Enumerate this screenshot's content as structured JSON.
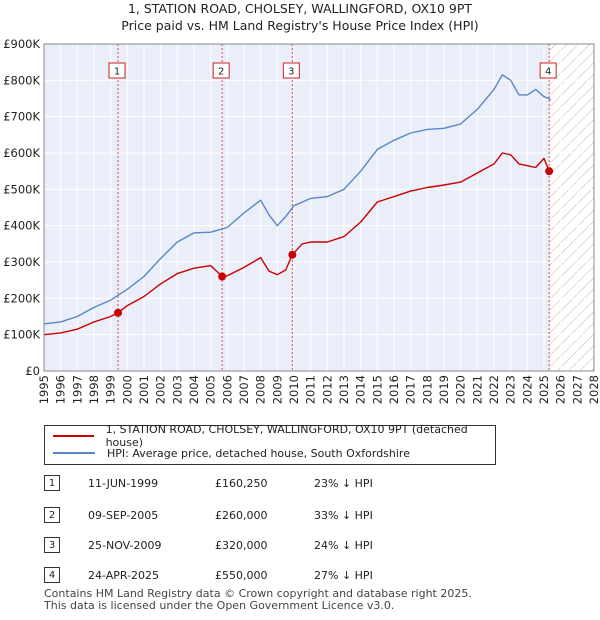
{
  "title": {
    "line1": "1, STATION ROAD, CHOLSEY, WALLINGFORD, OX10 9PT",
    "line2": "Price paid vs. HM Land Registry's House Price Index (HPI)"
  },
  "chart_data": {
    "type": "line",
    "title": "1, STATION ROAD, CHOLSEY, WALLINGFORD, OX10 9PT — Price paid vs. HM Land Registry's House Price Index (HPI)",
    "xlabel": "",
    "ylabel": "",
    "xlim": [
      1995,
      2028
    ],
    "ylim": [
      0,
      900000
    ],
    "x_ticks": [
      "1995",
      "1996",
      "1997",
      "1998",
      "1999",
      "2000",
      "2001",
      "2002",
      "2003",
      "2004",
      "2005",
      "2006",
      "2007",
      "2008",
      "2009",
      "2010",
      "2011",
      "2012",
      "2013",
      "2014",
      "2015",
      "2016",
      "2017",
      "2018",
      "2019",
      "2020",
      "2021",
      "2022",
      "2023",
      "2024",
      "2025",
      "2026",
      "2027",
      "2028"
    ],
    "y_ticks": [
      {
        "value": 0,
        "label": "£0"
      },
      {
        "value": 100000,
        "label": "£100K"
      },
      {
        "value": 200000,
        "label": "£200K"
      },
      {
        "value": 300000,
        "label": "£300K"
      },
      {
        "value": 400000,
        "label": "£400K"
      },
      {
        "value": 500000,
        "label": "£500K"
      },
      {
        "value": 600000,
        "label": "£600K"
      },
      {
        "value": 700000,
        "label": "£700K"
      },
      {
        "value": 800000,
        "label": "£800K"
      },
      {
        "value": 900000,
        "label": "£900K"
      }
    ],
    "grid": true,
    "future_hatch_from": 2025.33,
    "series": [
      {
        "name": "1, STATION ROAD, CHOLSEY, WALLINGFORD, OX10 9PT (detached house)",
        "color": "#cc0000",
        "x": [
          1995.0,
          1996.0,
          1997.0,
          1998.0,
          1999.0,
          1999.44,
          2000.0,
          2001.0,
          2002.0,
          2003.0,
          2004.0,
          2005.0,
          2005.69,
          2006.0,
          2007.0,
          2008.0,
          2008.5,
          2009.0,
          2009.5,
          2009.9,
          2010.5,
          2011.0,
          2012.0,
          2013.0,
          2014.0,
          2015.0,
          2016.0,
          2017.0,
          2018.0,
          2019.0,
          2020.0,
          2021.0,
          2022.0,
          2022.5,
          2023.0,
          2023.5,
          2024.0,
          2024.5,
          2025.0,
          2025.31,
          2025.4
        ],
        "values": [
          100000,
          105000,
          115000,
          135000,
          150000,
          160250,
          180000,
          205000,
          240000,
          268000,
          283000,
          290000,
          260000,
          262000,
          285000,
          312000,
          275000,
          265000,
          278000,
          320000,
          350000,
          355000,
          355000,
          370000,
          410000,
          465000,
          480000,
          495000,
          505000,
          512000,
          520000,
          545000,
          570000,
          600000,
          595000,
          570000,
          565000,
          560000,
          585000,
          550000,
          545000
        ]
      },
      {
        "name": "HPI: Average price, detached house, South Oxfordshire",
        "color": "#5a87c5",
        "x": [
          1995.0,
          1996.0,
          1997.0,
          1998.0,
          1999.0,
          2000.0,
          2001.0,
          2002.0,
          2003.0,
          2004.0,
          2005.0,
          2006.0,
          2007.0,
          2008.0,
          2008.5,
          2009.0,
          2009.5,
          2010.0,
          2011.0,
          2012.0,
          2013.0,
          2014.0,
          2015.0,
          2016.0,
          2017.0,
          2018.0,
          2019.0,
          2020.0,
          2021.0,
          2022.0,
          2022.5,
          2023.0,
          2023.5,
          2024.0,
          2024.5,
          2025.0,
          2025.31,
          2025.4
        ],
        "values": [
          130000,
          135000,
          150000,
          175000,
          195000,
          225000,
          260000,
          310000,
          355000,
          380000,
          382000,
          395000,
          435000,
          470000,
          430000,
          400000,
          425000,
          455000,
          475000,
          480000,
          500000,
          550000,
          610000,
          635000,
          655000,
          665000,
          668000,
          680000,
          720000,
          775000,
          815000,
          800000,
          760000,
          760000,
          775000,
          755000,
          750000,
          745000
        ]
      }
    ],
    "sales": [
      {
        "id": "1",
        "date": "11-JUN-1999",
        "x": 1999.44,
        "price": 160250,
        "price_label": "£160,250",
        "hpi_label": "23% ↓ HPI"
      },
      {
        "id": "2",
        "date": "09-SEP-2005",
        "x": 2005.69,
        "price": 260000,
        "price_label": "£260,000",
        "hpi_label": "33% ↓ HPI"
      },
      {
        "id": "3",
        "date": "25-NOV-2009",
        "x": 2009.9,
        "price": 320000,
        "price_label": "£320,000",
        "hpi_label": "24% ↓ HPI"
      },
      {
        "id": "4",
        "date": "24-APR-2025",
        "x": 2025.31,
        "price": 550000,
        "price_label": "£550,000",
        "hpi_label": "27% ↓ HPI"
      }
    ],
    "legend_position": "below-chart"
  },
  "legend": {
    "items": [
      {
        "label": "1, STATION ROAD, CHOLSEY, WALLINGFORD, OX10 9PT (detached house)",
        "color": "#cc0000"
      },
      {
        "label": "HPI: Average price, detached house, South Oxfordshire",
        "color": "#5a87c5"
      }
    ]
  },
  "footer": {
    "line1": "Contains HM Land Registry data © Crown copyright and database right 2025.",
    "line2": "This data is licensed under the Open Government Licence v3.0."
  }
}
